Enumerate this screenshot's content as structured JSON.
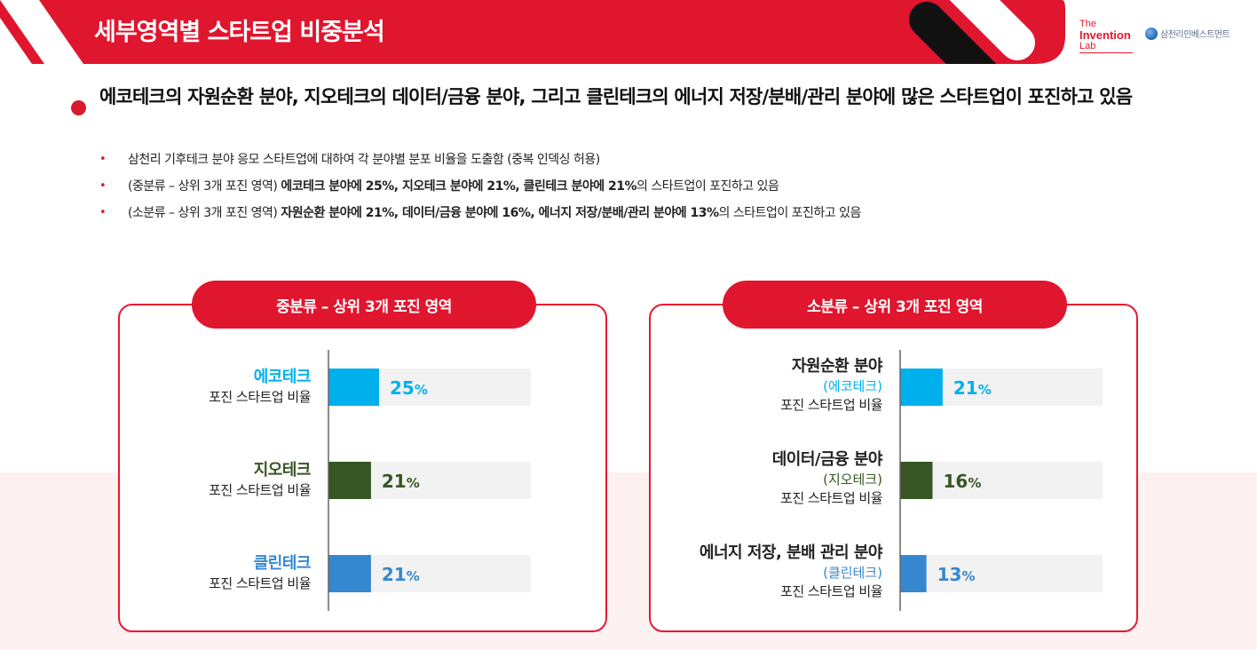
{
  "header": {
    "title": "세부영역별 스타트업 비중분석",
    "logo_lab": [
      "The",
      "Invention",
      "Lab"
    ],
    "logo_sc": "삼천리인베스트먼트",
    "colors": {
      "red": "#e0152e",
      "dark": "#111111"
    }
  },
  "headline": "에코테크의 자원순환 분야, 지오테크의 데이터/금융 분야, 그리고 클린테크의 에너지 저장/분배/관리 분야에 많은 스타트업이 포진하고 있음",
  "bullets": [
    {
      "plain": "삼천리 기후테크 분야 응모 스타트업에 대하여 각 분야별 분포 비율을 도출함 (중복 인덱싱 허용)",
      "bold": "",
      "tail": ""
    },
    {
      "plain": "(중분류 – 상위 3개 포진 영역) ",
      "bold": "에코테크 분야에 25%, 지오테크  분야에 21%, 클린테크 분야에 21%",
      "tail": "의 스타트업이 포진하고 있음"
    },
    {
      "plain": "(소분류 – 상위 3개 포진 영역) ",
      "bold": "자원순환 분야에 21%, 데이터/금융 분야에 16%, 에너지 저장/분배/관리 분야에 13%",
      "tail": "의 스타트업이 포진하고 있음"
    }
  ],
  "chart_data": [
    {
      "type": "bar",
      "orientation": "horizontal",
      "title": "중분류 – 상위 3개 포진 영역",
      "categories": [
        "에코테크",
        "지오테크",
        "클린테크"
      ],
      "category_subtitle": "포진 스타트업 비율",
      "values": [
        25,
        21,
        21
      ],
      "value_labels": [
        "25",
        "21",
        "21"
      ],
      "unit": "%",
      "colors": [
        "#00b0ec",
        "#375623",
        "#3588d0"
      ],
      "track_color": "#f2f2f2",
      "xlim": [
        0,
        100
      ]
    },
    {
      "type": "bar",
      "orientation": "horizontal",
      "title": "소분류 – 상위 3개 포진 영역",
      "categories": [
        "자원순환 분야",
        "데이터/금융 분야",
        "에너지 저장, 분배 관리 분야"
      ],
      "groups": [
        "(에코테크)",
        "(지오테크)",
        "(클린테크)"
      ],
      "category_subtitle": "포진 스타트업 비율",
      "values": [
        21,
        16,
        13
      ],
      "value_labels": [
        "21",
        "16",
        "13"
      ],
      "unit": "%",
      "colors": [
        "#00b0ec",
        "#375623",
        "#3588d0"
      ],
      "track_color": "#f2f2f2",
      "xlim": [
        0,
        100
      ]
    }
  ]
}
